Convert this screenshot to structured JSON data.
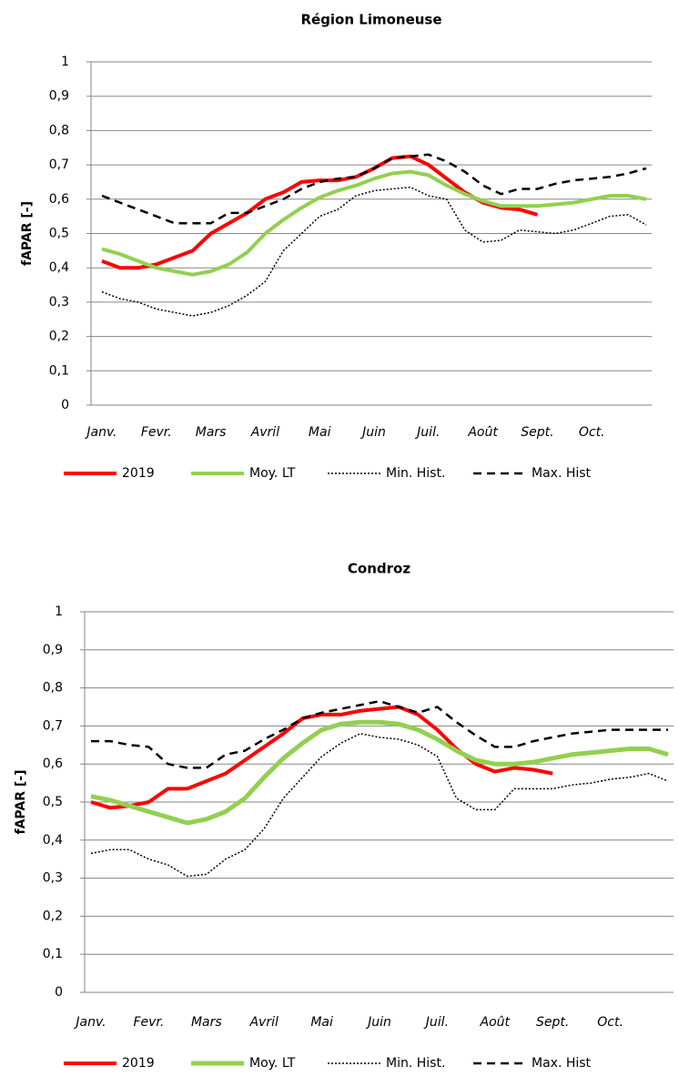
{
  "chart_data": [
    {
      "type": "line",
      "title": "Région Limoneuse",
      "y_label": "fAPAR [-]",
      "categories": [
        "Janv.",
        null,
        null,
        "Fevr.",
        null,
        null,
        "Mars",
        null,
        null,
        "Avril",
        null,
        null,
        "Mai",
        null,
        null,
        "Juin",
        null,
        null,
        "Juil.",
        null,
        null,
        "Août",
        null,
        null,
        "Sept.",
        null,
        null,
        "Oct.",
        null,
        null,
        null
      ],
      "ylim": [
        0,
        1
      ],
      "yticks": [
        0,
        {
          "value": 0.1,
          "label": "0,1"
        },
        {
          "value": 0.2,
          "label": "0,2"
        },
        {
          "value": 0.3,
          "label": "0,3"
        },
        {
          "value": 0.4,
          "label": "0,4"
        },
        {
          "value": 0.5,
          "label": "0,5"
        },
        {
          "value": 0.6,
          "label": "0,6"
        },
        {
          "value": 0.7,
          "label": "0,7"
        },
        {
          "value": 0.8,
          "label": "0,8"
        },
        {
          "value": 0.9,
          "label": "0,9"
        },
        1
      ],
      "grid": true,
      "series": [
        {
          "name": "2019",
          "color": "#ff0000",
          "line_style": "solid",
          "line_width": 4,
          "values": [
            0.42,
            0.4,
            0.4,
            0.41,
            0.43,
            0.45,
            0.5,
            0.53,
            0.56,
            0.6,
            0.62,
            0.65,
            0.655,
            0.655,
            0.665,
            0.69,
            0.72,
            0.725,
            0.7,
            0.66,
            0.62,
            0.59,
            0.575,
            0.57,
            0.555,
            null,
            null,
            null,
            null,
            null,
            null
          ]
        },
        {
          "name": "Moy. LT",
          "color": "#92d050",
          "line_style": "solid",
          "line_width": 4,
          "values": [
            0.455,
            0.44,
            0.42,
            0.4,
            0.39,
            0.38,
            0.39,
            0.41,
            0.445,
            0.5,
            0.54,
            0.575,
            0.605,
            0.625,
            0.64,
            0.66,
            0.675,
            0.68,
            0.67,
            0.64,
            0.615,
            0.595,
            0.58,
            0.58,
            0.58,
            0.585,
            0.59,
            0.6,
            0.61,
            0.61,
            0.6
          ]
        },
        {
          "name": "Min. Hist.",
          "color": "#000000",
          "line_style": "dotted",
          "line_width": 1.5,
          "values": [
            0.33,
            0.31,
            0.3,
            0.28,
            0.27,
            0.26,
            0.27,
            0.29,
            0.32,
            0.36,
            0.45,
            0.5,
            0.55,
            0.57,
            0.61,
            0.625,
            0.63,
            0.635,
            0.61,
            0.6,
            0.51,
            0.475,
            0.48,
            0.51,
            0.505,
            0.5,
            0.51,
            0.53,
            0.55,
            0.555,
            0.525
          ]
        },
        {
          "name": "Max. Hist",
          "color": "#000000",
          "line_style": "dashed",
          "line_width": 2.5,
          "values": [
            0.61,
            0.59,
            0.57,
            0.55,
            0.53,
            0.53,
            0.53,
            0.56,
            0.56,
            0.58,
            0.6,
            0.63,
            0.65,
            0.66,
            0.665,
            0.69,
            0.72,
            0.725,
            0.73,
            0.71,
            0.68,
            0.64,
            0.615,
            0.63,
            0.63,
            0.645,
            0.655,
            0.66,
            0.665,
            0.675,
            0.69
          ]
        }
      ]
    },
    {
      "type": "line",
      "title": "Condroz",
      "y_label": "fAPAR [-]",
      "categories": [
        "Janv.",
        null,
        null,
        "Fevr.",
        null,
        null,
        "Mars",
        null,
        null,
        "Avril",
        null,
        null,
        "Mai",
        null,
        null,
        "Juin",
        null,
        null,
        "Juil.",
        null,
        null,
        "Août",
        null,
        null,
        "Sept.",
        null,
        null,
        "Oct.",
        null,
        null,
        null
      ],
      "ylim": [
        0,
        1
      ],
      "yticks": [
        0,
        {
          "value": 0.1,
          "label": "0,1"
        },
        {
          "value": 0.2,
          "label": "0,2"
        },
        {
          "value": 0.3,
          "label": "0,3"
        },
        {
          "value": 0.4,
          "label": "0,4"
        },
        {
          "value": 0.5,
          "label": "0,5"
        },
        {
          "value": 0.6,
          "label": "0,6"
        },
        {
          "value": 0.7,
          "label": "0,7"
        },
        {
          "value": 0.8,
          "label": "0,8"
        },
        {
          "value": 0.9,
          "label": "0,9"
        },
        1
      ],
      "grid": true,
      "series": [
        {
          "name": "2019",
          "color": "#ff0000",
          "line_style": "solid",
          "line_width": 4,
          "values": [
            0.5,
            0.485,
            0.49,
            0.5,
            0.535,
            0.535,
            0.555,
            0.575,
            0.61,
            0.645,
            0.68,
            0.72,
            0.73,
            0.73,
            0.74,
            0.745,
            0.75,
            0.73,
            0.69,
            0.64,
            0.6,
            0.58,
            0.59,
            0.585,
            0.575,
            null,
            null,
            null,
            null,
            null,
            null
          ]
        },
        {
          "name": "Moy. LT",
          "color": "#92d050",
          "line_style": "solid",
          "line_width": 5,
          "values": [
            0.515,
            0.505,
            0.49,
            0.475,
            0.46,
            0.445,
            0.455,
            0.475,
            0.51,
            0.565,
            0.615,
            0.655,
            0.69,
            0.705,
            0.71,
            0.71,
            0.705,
            0.69,
            0.665,
            0.635,
            0.61,
            0.6,
            0.6,
            0.605,
            0.615,
            0.625,
            0.63,
            0.635,
            0.64,
            0.64,
            0.625
          ]
        },
        {
          "name": "Min. Hist.",
          "color": "#000000",
          "line_style": "dotted",
          "line_width": 1.5,
          "values": [
            0.365,
            0.375,
            0.375,
            0.35,
            0.335,
            0.305,
            0.31,
            0.35,
            0.375,
            0.43,
            0.51,
            0.565,
            0.62,
            0.655,
            0.68,
            0.67,
            0.665,
            0.65,
            0.62,
            0.51,
            0.48,
            0.48,
            0.535,
            0.535,
            0.535,
            0.545,
            0.55,
            0.56,
            0.565,
            0.575,
            0.555
          ]
        },
        {
          "name": "Max. Hist",
          "color": "#000000",
          "line_style": "dashed",
          "line_width": 2.5,
          "values": [
            0.66,
            0.66,
            0.65,
            0.645,
            0.6,
            0.59,
            0.59,
            0.625,
            0.635,
            0.665,
            0.69,
            0.72,
            0.735,
            0.745,
            0.755,
            0.765,
            0.75,
            0.735,
            0.75,
            0.71,
            0.675,
            0.645,
            0.645,
            0.66,
            0.67,
            0.68,
            0.685,
            0.69,
            0.69,
            0.69,
            0.69
          ]
        }
      ]
    }
  ]
}
